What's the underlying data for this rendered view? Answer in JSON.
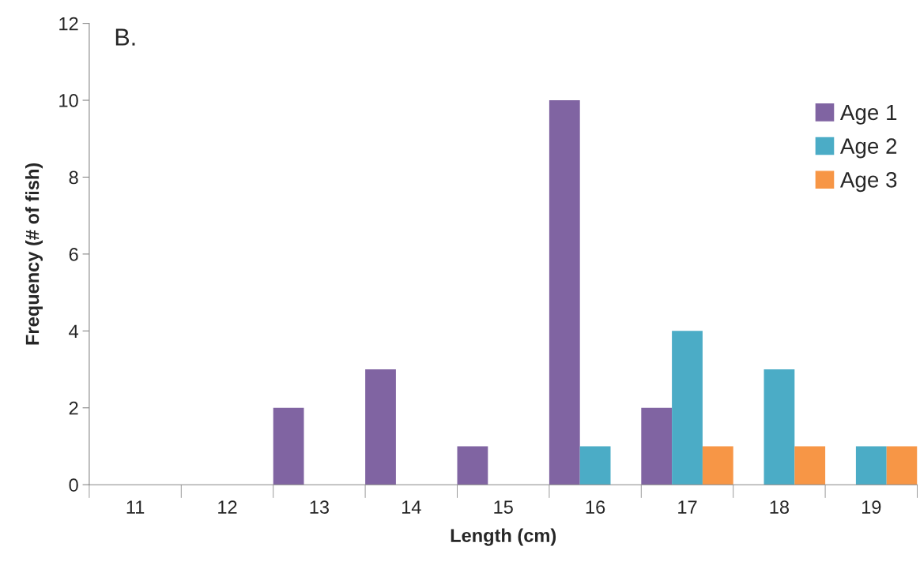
{
  "chart_data": {
    "type": "bar",
    "xlabel": "Length (cm)",
    "ylabel": "Frequency (# of fish)",
    "annotations": [
      "B."
    ],
    "categories": [
      "11",
      "12",
      "13",
      "14",
      "15",
      "16",
      "17",
      "18",
      "19"
    ],
    "series": [
      {
        "name": "Age 1",
        "color": "#8064a2",
        "values": [
          0,
          0,
          2,
          3,
          1,
          10,
          2,
          0,
          0
        ]
      },
      {
        "name": "Age 2",
        "color": "#4bacc6",
        "values": [
          0,
          0,
          0,
          0,
          0,
          1,
          4,
          3,
          1
        ]
      },
      {
        "name": "Age 3",
        "color": "#f79646",
        "values": [
          0,
          0,
          0,
          0,
          0,
          0,
          1,
          1,
          1
        ]
      }
    ],
    "ylim": [
      0,
      12
    ],
    "yticks": [
      0,
      2,
      4,
      6,
      8,
      10,
      12
    ],
    "grid": false,
    "legend": "right"
  }
}
